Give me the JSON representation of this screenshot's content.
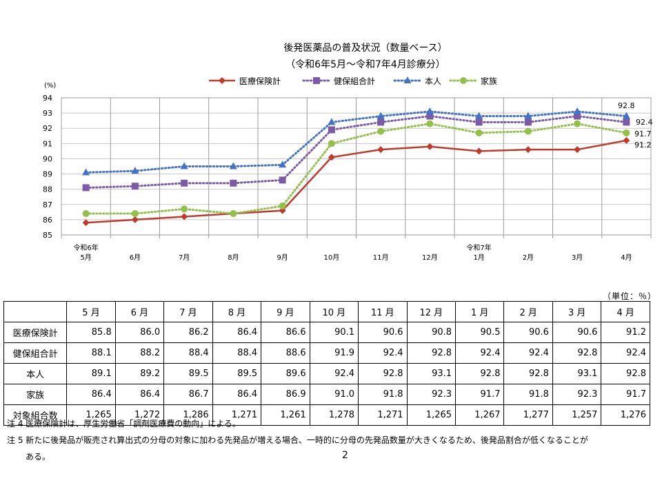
{
  "chart_data": {
    "type": "line",
    "title": "後発医薬品の普及状況（数量ベース）",
    "subtitle": "（令和6年5月～令和7年4月診療分）",
    "ylabel": "(%)",
    "ylim": [
      85,
      94
    ],
    "yticks": [
      "85",
      "86",
      "87",
      "88",
      "89",
      "90",
      "91",
      "92",
      "93",
      "94"
    ],
    "categories": [
      "5月",
      "6月",
      "7月",
      "8月",
      "9月",
      "10月",
      "11月",
      "12月",
      "1月",
      "2月",
      "3月",
      "4月"
    ],
    "year_labels": [
      {
        "index": 0,
        "text": "令和6年"
      },
      {
        "index": 8,
        "text": "令和7年"
      }
    ],
    "series": [
      {
        "name": "医療保険計",
        "color": "#C0392B",
        "marker": "diamond",
        "dash": "solid",
        "values": [
          85.8,
          86.0,
          86.2,
          86.4,
          86.6,
          90.1,
          90.6,
          90.8,
          90.5,
          90.6,
          90.6,
          91.2
        ]
      },
      {
        "name": "健保組合計",
        "color": "#7B5BA6",
        "marker": "square",
        "dash": "dotted",
        "values": [
          88.1,
          88.2,
          88.4,
          88.4,
          88.6,
          91.9,
          92.4,
          92.8,
          92.4,
          92.4,
          92.8,
          92.4
        ]
      },
      {
        "name": "本人",
        "color": "#4472C4",
        "marker": "triangle",
        "dash": "dotted",
        "values": [
          89.1,
          89.2,
          89.5,
          89.5,
          89.6,
          92.4,
          92.8,
          93.1,
          92.8,
          92.8,
          93.1,
          92.8
        ]
      },
      {
        "name": "家族",
        "color": "#92C04B",
        "marker": "circle",
        "dash": "dotted",
        "values": [
          86.4,
          86.4,
          86.7,
          86.4,
          86.9,
          91.0,
          91.8,
          92.3,
          91.7,
          91.8,
          92.3,
          91.7
        ]
      }
    ],
    "end_labels": [
      "91.2",
      "92.4",
      "92.8",
      "91.7"
    ],
    "legend_position": "top"
  },
  "table": {
    "unit": "（単位：％）",
    "headers": [
      "5 月",
      "6 月",
      "7 月",
      "8 月",
      "9 月",
      "10 月",
      "11 月",
      "12 月",
      "1 月",
      "2 月",
      "3 月",
      "4 月"
    ],
    "rows": [
      {
        "label": "医療保険計",
        "values": [
          "85.8",
          "86.0",
          "86.2",
          "86.4",
          "86.6",
          "90.1",
          "90.6",
          "90.8",
          "90.5",
          "90.6",
          "90.6",
          "91.2"
        ]
      },
      {
        "label": "健保組合計",
        "values": [
          "88.1",
          "88.2",
          "88.4",
          "88.4",
          "88.6",
          "91.9",
          "92.4",
          "92.8",
          "92.4",
          "92.4",
          "92.8",
          "92.4"
        ]
      },
      {
        "label": "本人",
        "values": [
          "89.1",
          "89.2",
          "89.5",
          "89.5",
          "89.6",
          "92.4",
          "92.8",
          "93.1",
          "92.8",
          "92.8",
          "93.1",
          "92.8"
        ]
      },
      {
        "label": "家族",
        "values": [
          "86.4",
          "86.4",
          "86.7",
          "86.4",
          "86.9",
          "91.0",
          "91.8",
          "92.3",
          "91.7",
          "91.8",
          "92.3",
          "91.7"
        ]
      },
      {
        "label": "対象組合数",
        "values": [
          "1,265",
          "1,272",
          "1,286",
          "1,271",
          "1,261",
          "1,278",
          "1,271",
          "1,265",
          "1,267",
          "1,277",
          "1,257",
          "1,276"
        ]
      }
    ]
  },
  "notes": {
    "note4": "注 4  医療保険計は、厚生労働省「調剤医療費の動向」による。",
    "note5": "注 5  新たに後発品が販売され算出式の分母の対象に加わる先発品が増える場合、一時的に分母の先発品数量が大きくなるため、後発品割合が低くなることが",
    "note5_cont": "ある。"
  },
  "page_number": "2"
}
